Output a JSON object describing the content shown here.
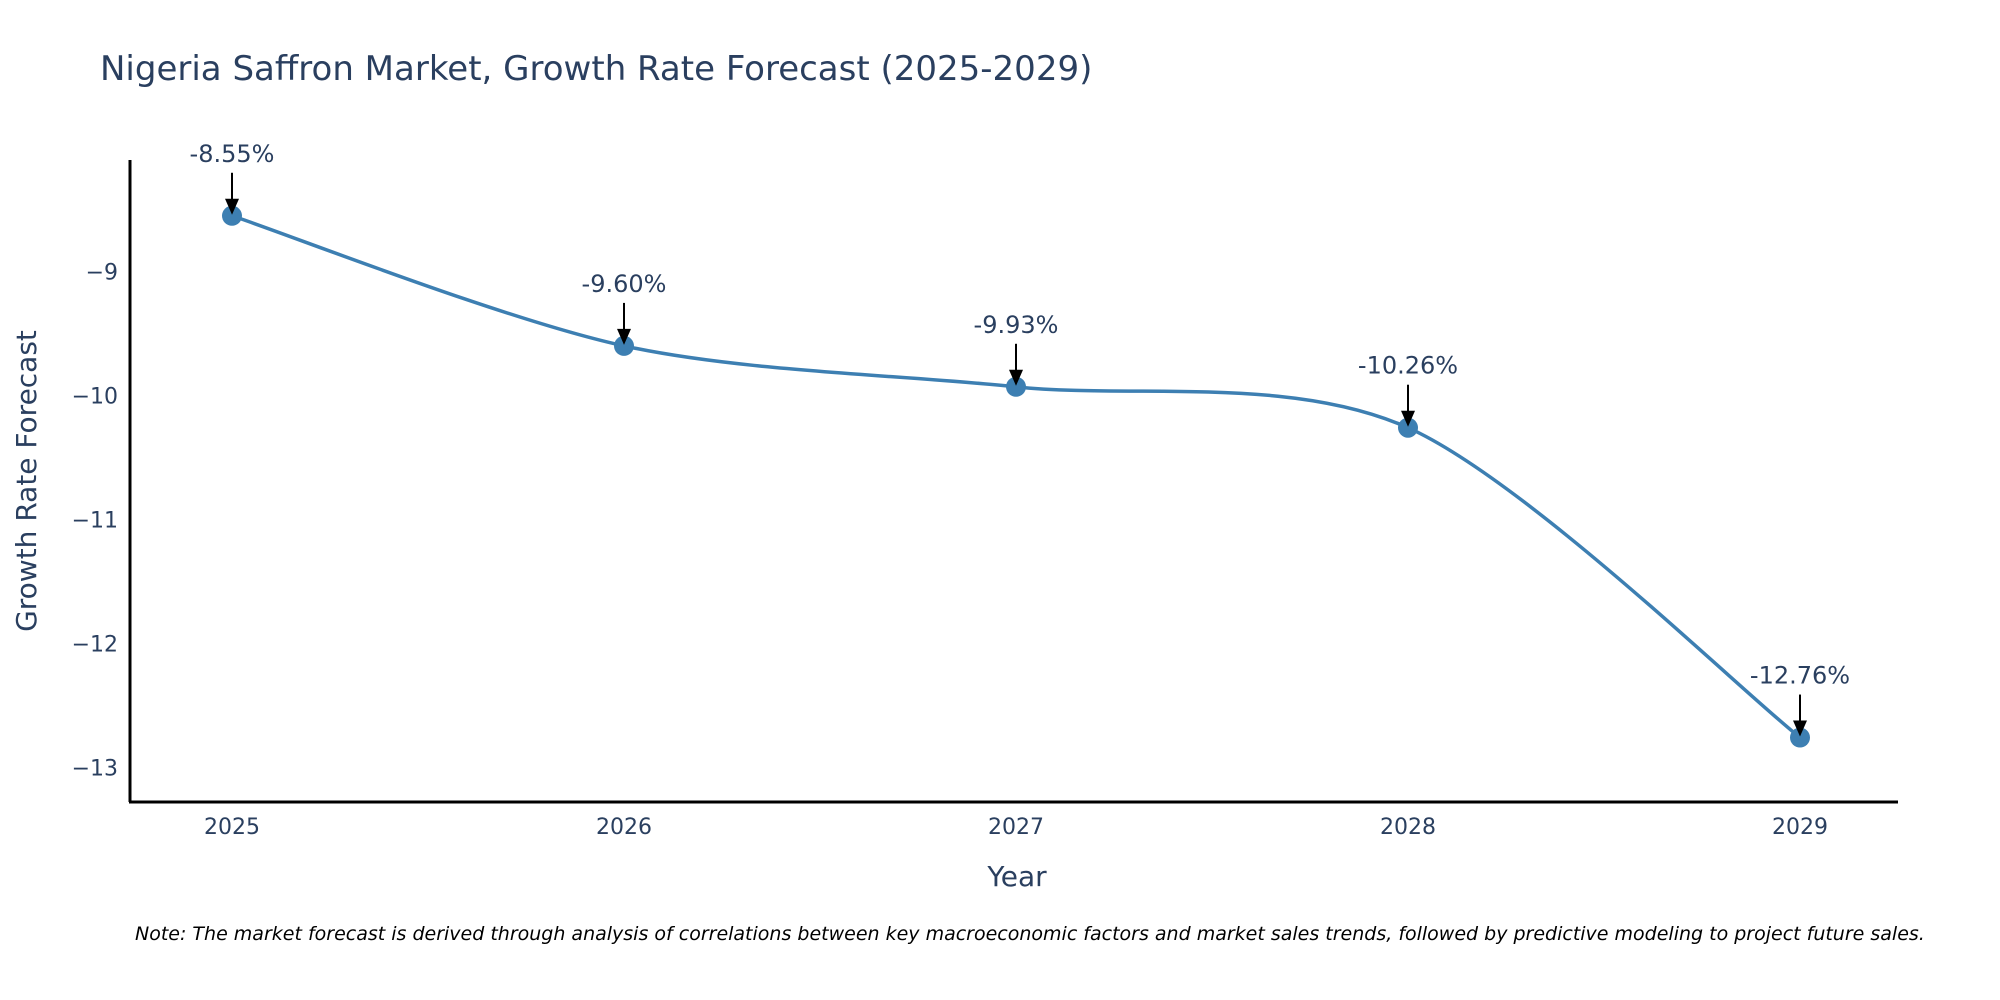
{
  "chart_data": {
    "type": "line",
    "title": "Nigeria Saffron Market, Growth Rate Forecast (2025-2029)",
    "xlabel": "Year",
    "ylabel": "Growth Rate Forecast",
    "categories": [
      "2025",
      "2026",
      "2027",
      "2028",
      "2029"
    ],
    "values": [
      -8.55,
      -9.6,
      -9.93,
      -10.26,
      -12.76
    ],
    "data_labels": [
      "-8.55%",
      "-9.60%",
      "-9.93%",
      "-10.26%",
      "-12.76%"
    ],
    "ylim": [
      -13.28,
      -8.1
    ],
    "yticks": [
      -9,
      -10,
      -11,
      -12,
      -13
    ],
    "ytick_labels": [
      "−9",
      "−10",
      "−11",
      "−12",
      "−13"
    ],
    "grid": false,
    "legend": "none",
    "line_color": "#3d7fb2",
    "marker_color": "#3d7fb2",
    "note": "Note: The market forecast is derived through analysis of correlations between key macroeconomic factors and market sales trends, followed by predictive modeling to project future sales."
  }
}
